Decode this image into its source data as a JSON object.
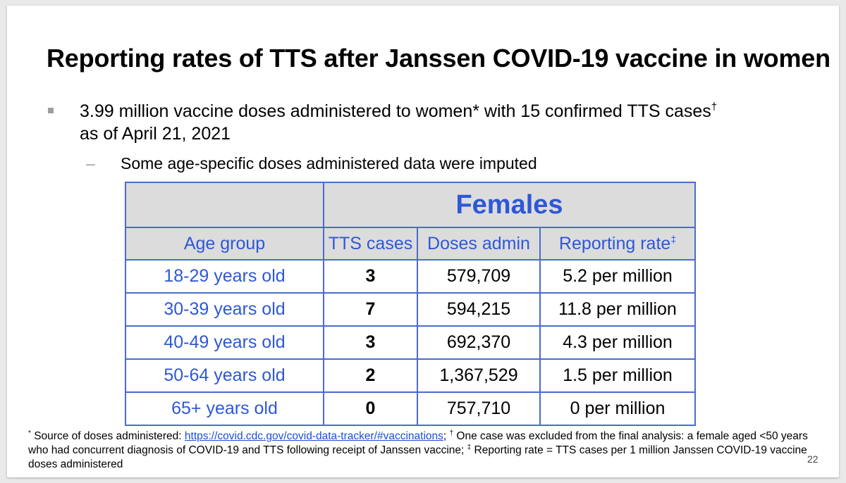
{
  "slide": {
    "title": "Reporting rates of TTS after Janssen COVID-19 vaccine in women",
    "bullet1": {
      "text": "3.99 million vaccine doses administered to women* with 15 confirmed TTS cases",
      "sup": "†",
      "text_line2": "as of April 21, 2021"
    },
    "bullet2": {
      "dash": "–",
      "text": "Some age-specific doses administered data were imputed"
    },
    "table": {
      "group_header": "Females",
      "columns": [
        "Age group",
        "TTS cases",
        "Doses admin",
        "Reporting rate"
      ],
      "rate_header_sup": "‡",
      "rows": [
        {
          "age": "18-29 years old",
          "cases": "3",
          "doses": "579,709",
          "rate": "5.2 per million"
        },
        {
          "age": "30-39 years old",
          "cases": "7",
          "doses": "594,215",
          "rate": "11.8 per million"
        },
        {
          "age": "40-49 years old",
          "cases": "3",
          "doses": "692,370",
          "rate": "4.3 per million"
        },
        {
          "age": "50-64 years old",
          "cases": "2",
          "doses": "1,367,529",
          "rate": "1.5 per million"
        },
        {
          "age": "65+ years old",
          "cases": "0",
          "doses": "757,710",
          "rate": "0 per million"
        }
      ]
    },
    "footnote": {
      "star_sup": "*",
      "part1": " Source of doses administered: ",
      "link": "https://covid.cdc.gov/covid-data-tracker/#vaccinations",
      "part2": "; ",
      "dagger_sup": "†",
      "part3": " One case was excluded from the final analysis: a female aged <50 years who had concurrent diagnosis of COVID-19 and TTS following receipt of Janssen vaccine; ",
      "ddagger_sup": "‡",
      "part4": " Reporting rate = TTS cases per 1 million Janssen COVID-19 vaccine doses administered"
    },
    "page_number": "22"
  },
  "colors": {
    "table_border": "#4a6bd0",
    "header_text": "#2e58d6",
    "header_bg": "#dcdcdc",
    "bullet_gray": "#9aa09a",
    "link": "#1a4fd6"
  }
}
